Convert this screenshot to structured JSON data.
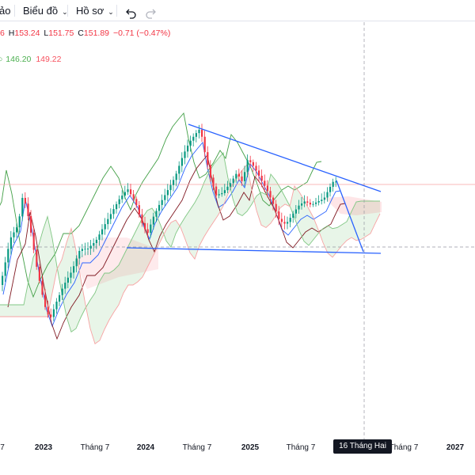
{
  "toolbar": {
    "item_cut_label": "ảo",
    "chart_type_label": "Biểu đồ",
    "profile_label": "Hồ sơ",
    "undo_icon": "undo-icon",
    "redo_icon": "redo-icon",
    "dropdown_icon": "chevron-down-icon"
  },
  "legend": {
    "ohlc": {
      "o_tail": "6",
      "h_label": "H",
      "h_value": "153.24",
      "l_label": "L",
      "l_value": "151.75",
      "c_label": "C",
      "c_value": "151.89",
      "change": "−0.71 (−0.47%)"
    },
    "ichimoku": {
      "value_1": "146.20",
      "value_2": "149.22"
    }
  },
  "time_axis": {
    "ticks": [
      "7",
      "2023",
      "Tháng 7",
      "2024",
      "Tháng 7",
      "2025",
      "Tháng 7",
      "Tháng 7",
      "2027"
    ],
    "crosshair_date": "16 Tháng Hai '26"
  },
  "chart_data": {
    "type": "candlestick",
    "title": "",
    "x_axis_ticks": [
      "7",
      "2023",
      "Tháng 7",
      "2024",
      "Tháng 7",
      "2025",
      "Tháng 7",
      "Tháng 7",
      "2027"
    ],
    "last_bar": {
      "high": 153.24,
      "low": 151.75,
      "close": 151.89,
      "change": -0.71,
      "change_pct": -0.47
    },
    "ichimoku_values": [
      146.2,
      149.22
    ],
    "overlays": [
      "ichimoku cloud",
      "conversion line",
      "base line",
      "lagging span"
    ],
    "drawings": [
      "descending resistance trendline",
      "horizontal support line",
      "projected breakdown arrow"
    ],
    "colors": {
      "up": "#089981",
      "down": "#f23645",
      "trendline": "#2962ff",
      "cloud_bull": "#4caf50",
      "cloud_bear": "#f7525f"
    }
  }
}
